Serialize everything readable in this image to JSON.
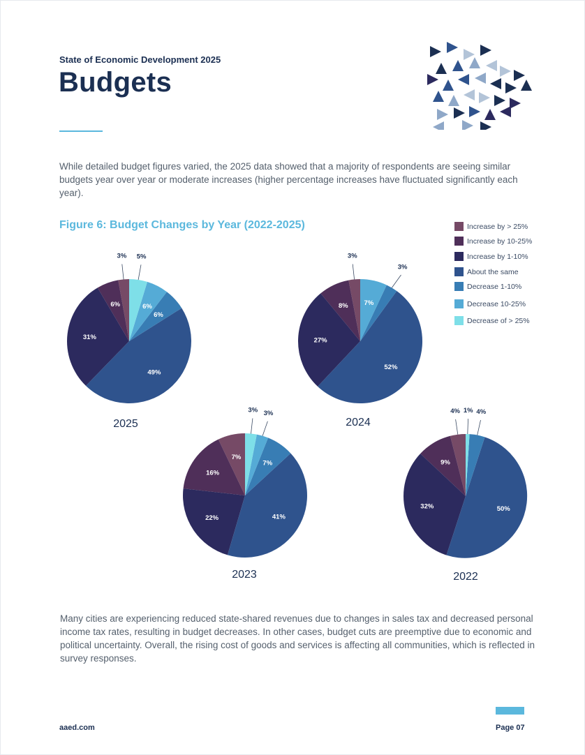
{
  "header": {
    "kicker": "State of Economic Development 2025",
    "title": "Budgets"
  },
  "intro_paragraph": "While detailed budget figures varied, the 2025 data showed that a majority of respondents are seeing similar budgets year over year or moderate increases (higher percentage increases have fluctuated significantly each year).",
  "figure_title": "Figure 6: Budget Changes by Year (2022-2025)",
  "closing_paragraph": "Many cities are experiencing reduced state-shared revenues due to changes in sales tax and decreased personal income tax rates, resulting in budget decreases. In other cases, budget cuts are preemptive due to economic and political uncertainty. Overall, the rising cost of goods and services is affecting all communities, which is reflected in survey responses.",
  "footer": {
    "site": "aaed.com",
    "page": "Page 07"
  },
  "colors": {
    "navy": "#1b2f52",
    "accent": "#5bb8dd",
    "body_text": "#55606d"
  },
  "decoration": "triangle-pattern",
  "chart_data": [
    {
      "type": "pie",
      "year_label": "2025",
      "categories": [
        "Increase by > 25%",
        "Increase by 10-25%",
        "Increase by 1-10%",
        "About the same",
        "Decrease 1-10%",
        "Decrease 10-25%",
        "Decrease of > 25%"
      ],
      "values": [
        3,
        6,
        31,
        49,
        6,
        6,
        5
      ],
      "slice_labels": [
        "3%",
        "6%",
        "31%",
        "49%",
        "6%",
        "6%",
        "5%"
      ]
    },
    {
      "type": "pie",
      "year_label": "2024",
      "categories": [
        "Increase by > 25%",
        "Increase by 10-25%",
        "Increase by 1-10%",
        "About the same",
        "Decrease 1-10%",
        "Decrease 10-25%",
        "Decrease of > 25%"
      ],
      "values": [
        3,
        8,
        27,
        52,
        3,
        7,
        0
      ],
      "slice_labels": [
        "3%",
        "8%",
        "27%",
        "52%",
        "3%",
        "7%",
        ""
      ]
    },
    {
      "type": "pie",
      "year_label": "2023",
      "categories": [
        "Increase by > 25%",
        "Increase by 10-25%",
        "Increase by 1-10%",
        "About the same",
        "Decrease 1-10%",
        "Decrease 10-25%",
        "Decrease of > 25%"
      ],
      "values": [
        7,
        16,
        22,
        41,
        7,
        3,
        3
      ],
      "slice_labels": [
        "7%",
        "16%",
        "22%",
        "41%",
        "7%",
        "3%",
        "3%"
      ]
    },
    {
      "type": "pie",
      "year_label": "2022",
      "categories": [
        "Increase by > 25%",
        "Increase by 10-25%",
        "Increase by 1-10%",
        "About the same",
        "Decrease 1-10%",
        "Decrease 10-25%",
        "Decrease of > 25%"
      ],
      "values": [
        4,
        9,
        32,
        50,
        4,
        0,
        1
      ],
      "slice_labels": [
        "4%",
        "9%",
        "32%",
        "50%",
        "4%",
        "",
        "1%"
      ]
    }
  ],
  "legend": [
    {
      "label": "Increase by > 25%",
      "color": "#764a66"
    },
    {
      "label": "Increase by 10-25%",
      "color": "#4f2f59"
    },
    {
      "label": "Increase by 1-10%",
      "color": "#2c2a5e"
    },
    {
      "label": "About the same",
      "color": "#2f538d"
    },
    {
      "label": "Decrease 1-10%",
      "color": "#387db4"
    },
    {
      "label": "Decrease 10-25%",
      "color": "#55abd6"
    },
    {
      "label": "Decrease of > 25%",
      "color": "#7edfe8"
    }
  ]
}
